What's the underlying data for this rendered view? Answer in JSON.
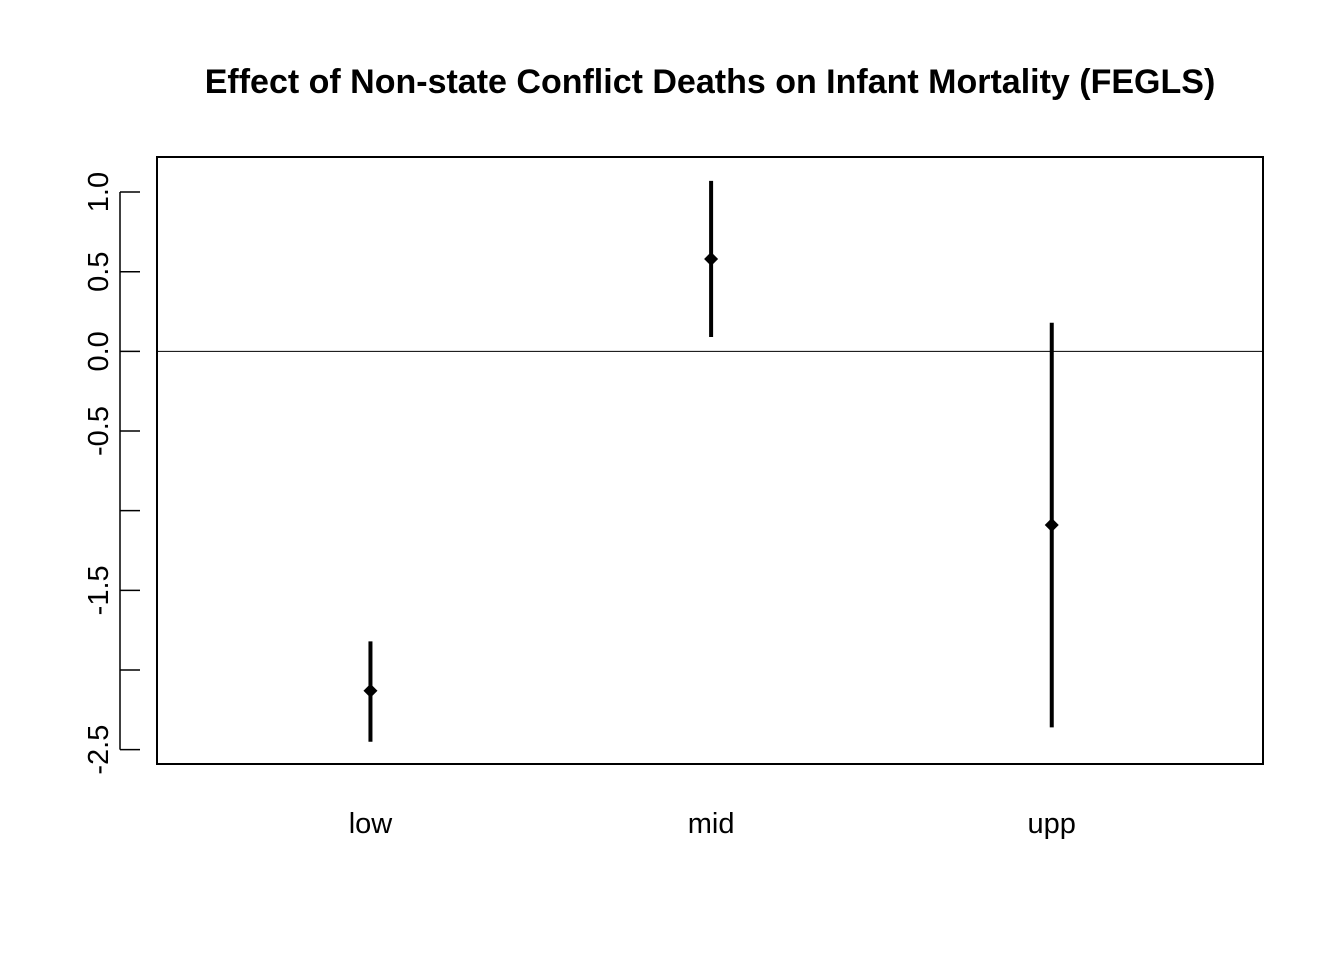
{
  "chart_data": {
    "type": "scatter",
    "title": "Effect of Non-state Conflict Deaths on Infant Mortality (FEGLS)",
    "xlabel": "",
    "ylabel": "",
    "categories": [
      "low",
      "mid",
      "upp"
    ],
    "points": [
      {
        "category": "low",
        "estimate": -2.13,
        "lower": -2.45,
        "upper": -1.82
      },
      {
        "category": "mid",
        "estimate": 0.58,
        "lower": 0.09,
        "upper": 1.07
      },
      {
        "category": "upp",
        "estimate": -1.09,
        "lower": -2.36,
        "upper": 0.18
      }
    ],
    "reference_line": 0.0,
    "y_ticks": [
      1.0,
      0.5,
      0.0,
      -0.5,
      -1.0,
      -1.5,
      -2.0,
      -2.5
    ],
    "y_tick_labels": [
      "1.0",
      "0.5",
      "0.0",
      "-0.5",
      "",
      "-1.5",
      "",
      "-2.5"
    ],
    "ylim": [
      -2.59,
      1.22
    ],
    "grid": false,
    "legend": "none",
    "colors": {
      "marks": "#000000",
      "axes": "#000000",
      "background": "#ffffff"
    }
  }
}
